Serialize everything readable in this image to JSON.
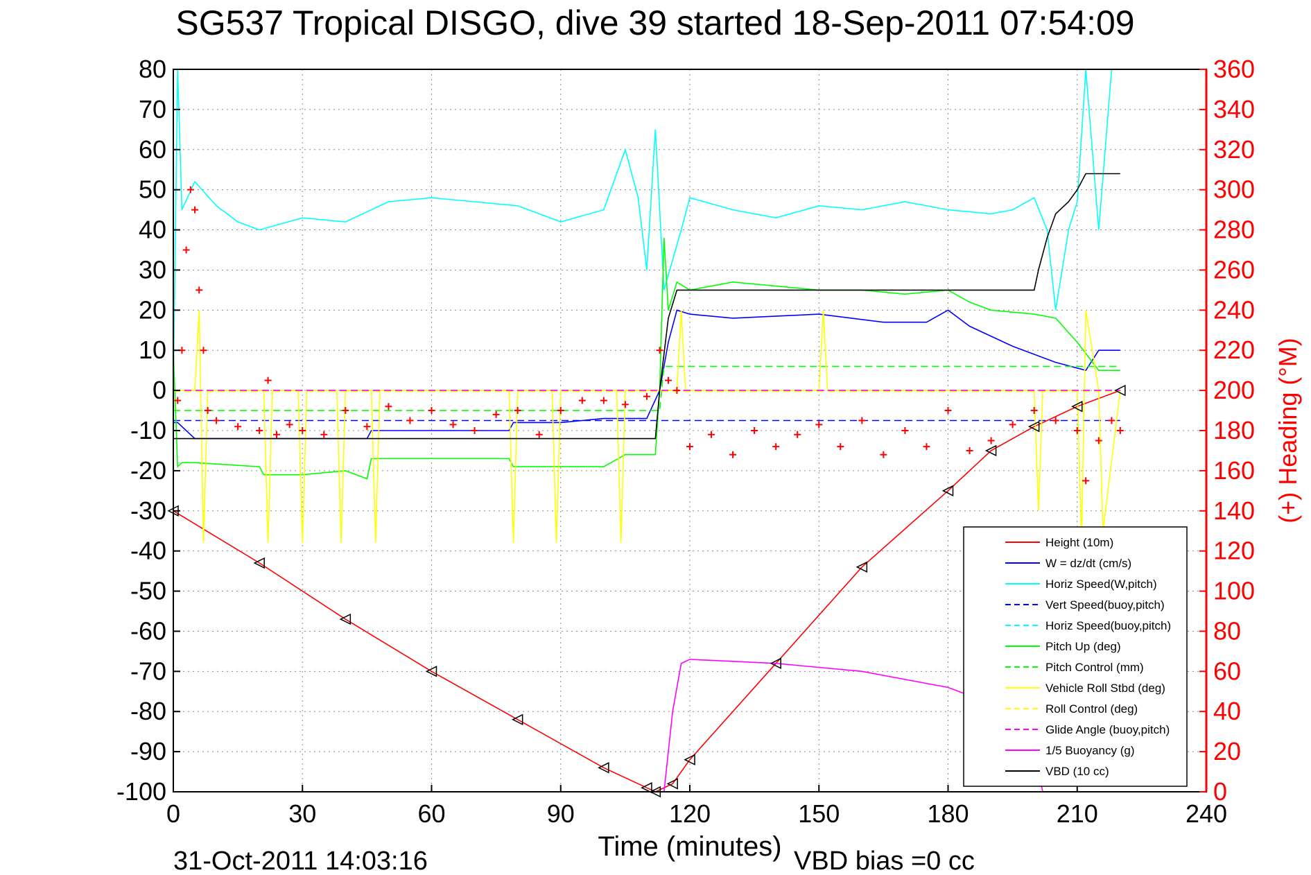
{
  "chart_data": {
    "type": "line",
    "title": "SG537 Tropical DISGO, dive 39 started 18-Sep-2011 07:54:09",
    "xlabel": "Time (minutes)",
    "ylabel_right": "(+) Heading (°M)",
    "xlim": [
      0,
      240
    ],
    "ylim": [
      -100,
      80
    ],
    "ylim_right": [
      0,
      360
    ],
    "x_ticks": [
      "0",
      "30",
      "60",
      "90",
      "120",
      "150",
      "180",
      "210",
      "240"
    ],
    "y_ticks": [
      "80",
      "70",
      "60",
      "50",
      "40",
      "30",
      "20",
      "10",
      "0",
      "-10",
      "-20",
      "-30",
      "-40",
      "-50",
      "-60",
      "-70",
      "-80",
      "-90",
      "-100"
    ],
    "y_ticks_right": [
      "360",
      "340",
      "320",
      "300",
      "280",
      "260",
      "240",
      "220",
      "200",
      "180",
      "160",
      "140",
      "120",
      "100",
      "80",
      "60",
      "40",
      "20",
      "0"
    ],
    "grid": true,
    "legend_position": "bottom-right",
    "footer_left": "31-Oct-2011 14:03:16",
    "footer_right": "VBD bias =0 cc",
    "series": [
      {
        "name": "Height (10m)",
        "color": "#ff0000",
        "style": "solid",
        "x": [
          0,
          20,
          40,
          60,
          80,
          100,
          110,
          112,
          116,
          120,
          140,
          160,
          180,
          190,
          200,
          210,
          220
        ],
        "y": [
          -30,
          -43,
          -57,
          -70,
          -82,
          -94,
          -99,
          -100,
          -98,
          -92,
          -68,
          -44,
          -25,
          -15,
          -9,
          -4,
          0
        ]
      },
      {
        "name": "W = dz/dt (cm/s)",
        "color": "#0000ff",
        "style": "solid",
        "x": [
          0,
          1,
          5,
          20,
          45,
          46,
          60,
          78,
          79,
          90,
          100,
          110,
          113,
          115,
          117,
          120,
          130,
          150,
          165,
          175,
          180,
          185,
          195,
          205,
          212,
          215,
          220
        ],
        "y": [
          -8,
          -8,
          -12,
          -12,
          -12,
          -10,
          -10,
          -10,
          -8,
          -8,
          -7,
          -7,
          0,
          12,
          20,
          19,
          18,
          19,
          17,
          17,
          20,
          16,
          11,
          7,
          5,
          10,
          10
        ]
      },
      {
        "name": "Horiz Speed(W,pitch)",
        "color": "#00ffff",
        "style": "solid",
        "x": [
          0,
          1,
          2,
          5,
          10,
          15,
          20,
          30,
          40,
          50,
          60,
          70,
          80,
          90,
          100,
          105,
          108,
          110,
          112,
          114,
          118,
          120,
          130,
          140,
          150,
          160,
          170,
          180,
          190,
          195,
          200,
          203,
          205,
          208,
          210,
          212,
          215,
          218,
          220
        ],
        "y": [
          0,
          80,
          45,
          52,
          46,
          42,
          40,
          43,
          42,
          47,
          48,
          47,
          46,
          42,
          45,
          60,
          48,
          30,
          65,
          25,
          40,
          48,
          45,
          43,
          46,
          45,
          47,
          45,
          44,
          45,
          48,
          40,
          20,
          40,
          47,
          80,
          40,
          80,
          80
        ]
      },
      {
        "name": "Vert Speed(buoy,pitch)",
        "color": "#0000ff",
        "style": "dashed",
        "x": [
          0,
          113,
          115,
          220
        ],
        "y": [
          -7.5,
          -7.5,
          -7.5,
          -7.5
        ]
      },
      {
        "name": "Horiz Speed(buoy,pitch)",
        "color": "#00ffff",
        "style": "dashed",
        "x": [
          0,
          220
        ],
        "y": [
          0,
          0
        ]
      },
      {
        "name": "Pitch Up (deg)",
        "color": "#00ff00",
        "style": "solid",
        "x": [
          0,
          1,
          2,
          5,
          20,
          21,
          30,
          40,
          45,
          46,
          60,
          78,
          79,
          90,
          100,
          105,
          112,
          113,
          114,
          115,
          117,
          120,
          130,
          140,
          150,
          160,
          170,
          180,
          185,
          190,
          200,
          205,
          210,
          215,
          220
        ],
        "y": [
          10,
          -19,
          -18,
          -18,
          -19,
          -21,
          -21,
          -20,
          -22,
          -17,
          -17,
          -17,
          -19,
          -19,
          -19,
          -16,
          -16,
          0,
          38,
          20,
          27,
          25,
          27,
          26,
          25,
          25,
          24,
          25,
          22,
          20,
          19,
          18,
          12,
          5,
          5
        ]
      },
      {
        "name": "Pitch Control (mm)",
        "color": "#00ff00",
        "style": "dashed",
        "x": [
          0,
          113,
          114,
          220
        ],
        "y": [
          -5,
          -5,
          6,
          6
        ]
      },
      {
        "name": "Vehicle Roll Stbd (deg)",
        "color": "#ffff00",
        "style": "solid",
        "x": [
          0,
          5,
          6,
          7,
          8,
          21,
          22,
          23,
          29,
          30,
          31,
          38,
          39,
          40,
          46,
          47,
          48,
          78,
          79,
          80,
          88,
          89,
          90,
          103,
          104,
          105,
          117,
          118,
          119,
          150,
          151,
          152,
          200,
          201,
          202,
          210,
          211,
          212,
          215,
          216,
          220
        ],
        "y": [
          0,
          0,
          20,
          -38,
          0,
          0,
          -38,
          0,
          0,
          -38,
          0,
          0,
          -38,
          0,
          0,
          -38,
          0,
          0,
          -38,
          0,
          0,
          -38,
          0,
          0,
          -38,
          0,
          0,
          20,
          0,
          0,
          20,
          0,
          0,
          -30,
          0,
          0,
          -38,
          20,
          0,
          -35,
          0
        ]
      },
      {
        "name": "Roll Control (deg)",
        "color": "#ffff00",
        "style": "dashed",
        "x": [
          0,
          220
        ],
        "y": [
          -0.2,
          -0.2
        ]
      },
      {
        "name": "Glide Angle (buoy,pitch)",
        "color": "#ff00ff",
        "style": "dashed",
        "x": [
          0,
          113,
          114,
          220
        ],
        "y": [
          0,
          0,
          0,
          0
        ]
      },
      {
        "name": "1/5 Buoyancy (g)",
        "color": "#ff00ff",
        "style": "solid",
        "x": [
          114,
          116,
          118,
          120,
          140,
          160,
          180,
          190,
          200,
          201,
          202
        ],
        "y": [
          -100,
          -80,
          -68,
          -67,
          -68,
          -70,
          -74,
          -78,
          -82,
          -95,
          -100
        ]
      },
      {
        "name": "VBD (10 cc)",
        "color": "#000000",
        "style": "solid",
        "x": [
          0,
          1,
          112,
          113,
          115,
          117,
          200,
          201,
          203,
          205,
          208,
          210,
          212,
          215,
          220
        ],
        "y": [
          -12,
          -12,
          -12,
          0,
          18,
          25,
          25,
          30,
          38,
          44,
          47,
          50,
          54,
          54,
          54
        ]
      }
    ],
    "heading_series": {
      "name": "(+) Heading (°M)",
      "color": "#ff0000",
      "marker": "+",
      "x": [
        1,
        2,
        3,
        4,
        5,
        6,
        7,
        8,
        10,
        15,
        20,
        22,
        24,
        27,
        30,
        35,
        40,
        45,
        50,
        55,
        60,
        65,
        70,
        75,
        80,
        85,
        90,
        95,
        100,
        105,
        110,
        113,
        115,
        117,
        120,
        125,
        130,
        135,
        140,
        145,
        150,
        155,
        160,
        165,
        170,
        175,
        180,
        185,
        190,
        195,
        200,
        205,
        210,
        212,
        215,
        218,
        220
      ],
      "y": [
        195,
        220,
        270,
        300,
        290,
        250,
        220,
        190,
        185,
        182,
        180,
        205,
        178,
        183,
        180,
        178,
        190,
        182,
        192,
        185,
        190,
        183,
        180,
        188,
        190,
        178,
        190,
        195,
        195,
        193,
        197,
        220,
        205,
        200,
        172,
        178,
        168,
        180,
        172,
        178,
        183,
        172,
        185,
        168,
        180,
        172,
        190,
        170,
        175,
        183,
        190,
        185,
        180,
        155,
        175,
        185,
        180
      ]
    }
  }
}
